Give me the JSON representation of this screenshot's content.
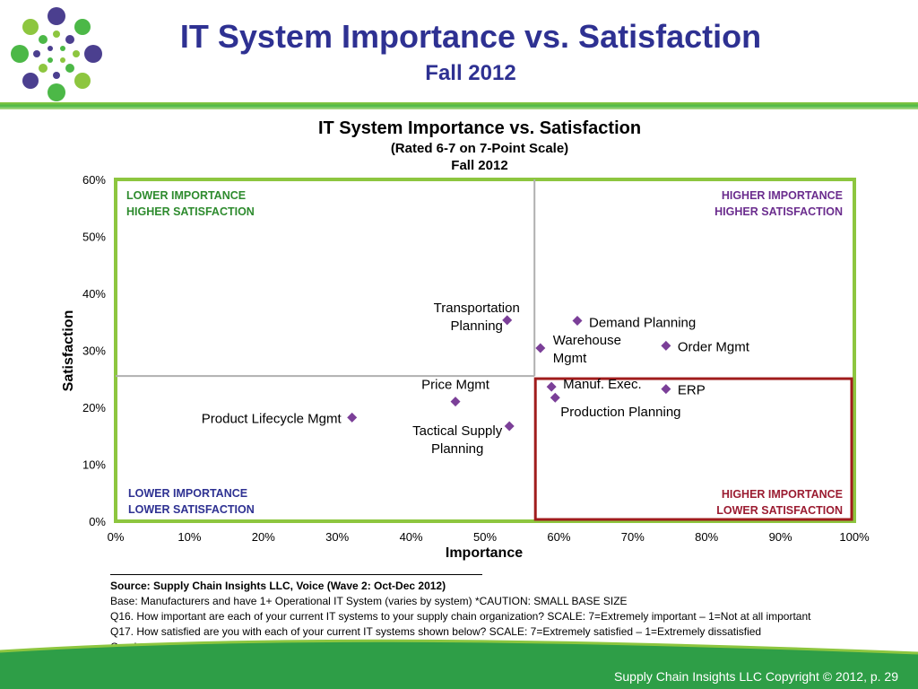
{
  "header": {
    "title": "IT System Importance vs. Satisfaction",
    "subtitle": "Fall 2012"
  },
  "colors": {
    "title_blue": "#2e3192",
    "brand_green": "#4cb847",
    "quadrant_border_green": "#8dc63f",
    "highlight_red": "#a01c1c",
    "marker_purple": "#7b3f98",
    "label_green": "#2e8b2e",
    "label_purple": "#6b2d8e",
    "label_blue": "#2e3192",
    "label_red": "#9b1c31"
  },
  "chart_data": {
    "type": "scatter",
    "title": "IT System Importance vs. Satisfaction",
    "subtitle_1": "(Rated 6-7 on 7-Point Scale)",
    "subtitle_2": "Fall 2012",
    "xlabel": "Importance",
    "ylabel": "Satisfaction",
    "xlim": [
      0,
      100
    ],
    "ylim": [
      0,
      60
    ],
    "x_ticks": [
      "0%",
      "10%",
      "20%",
      "30%",
      "40%",
      "50%",
      "60%",
      "70%",
      "80%",
      "90%",
      "100%"
    ],
    "y_ticks": [
      "0%",
      "10%",
      "20%",
      "30%",
      "40%",
      "50%",
      "60%"
    ],
    "quadrant_lines": {
      "x": 56.7,
      "y": 25.5
    },
    "quadrant_labels": {
      "top_left": [
        "LOWER IMPORTANCE",
        "HIGHER SATISFACTION"
      ],
      "top_right": [
        "HIGHER IMPORTANCE",
        "HIGHER SATISFACTION"
      ],
      "bottom_left": [
        "LOWER IMPORTANCE",
        "LOWER SATISFACTION"
      ],
      "bottom_right": [
        "HIGHER IMPORTANCE",
        "LOWER SATISFACTION"
      ]
    },
    "points": [
      {
        "label": [
          "Transportation",
          "Planning"
        ],
        "x": 53,
        "y": 35.3
      },
      {
        "label": [
          "Demand Planning"
        ],
        "x": 62.5,
        "y": 35.2
      },
      {
        "label": [
          "Warehouse",
          "Mgmt"
        ],
        "x": 57.5,
        "y": 30.4
      },
      {
        "label": [
          "Order Mgmt"
        ],
        "x": 74.5,
        "y": 30.8
      },
      {
        "label": [
          "Price Mgmt"
        ],
        "x": 46,
        "y": 21
      },
      {
        "label": [
          "Manuf. Exec."
        ],
        "x": 59,
        "y": 23.6
      },
      {
        "label": [
          "ERP"
        ],
        "x": 74.5,
        "y": 23.2
      },
      {
        "label": [
          "Production Planning"
        ],
        "x": 59.5,
        "y": 21.7
      },
      {
        "label": [
          "Product Lifecycle Mgmt"
        ],
        "x": 32,
        "y": 18.2
      },
      {
        "label": [
          "Tactical Supply",
          "Planning"
        ],
        "x": 53.3,
        "y": 16.7
      }
    ]
  },
  "notes": {
    "source": "Source:  Supply Chain Insights LLC, Voice (Wave 2: Oct-Dec 2012)",
    "base": "Base:  Manufacturers and have 1+ Operational IT System (varies by system) *CAUTION:  SMALL BASE SIZE",
    "q16": "Q16. How important are each of your current IT systems to your supply chain organization? SCALE:  7=Extremely important – 1=Not at all important",
    "q17": "Q17. How satisfied are you with each of your current IT systems shown below? SCALE:  7=Extremely satisfied – 1=Extremely dissatisfied",
    "quadrant": "Quadrant lines based on average ratings"
  },
  "footer": {
    "text": "Supply Chain Insights LLC Copyright © 2012, p. 29"
  }
}
